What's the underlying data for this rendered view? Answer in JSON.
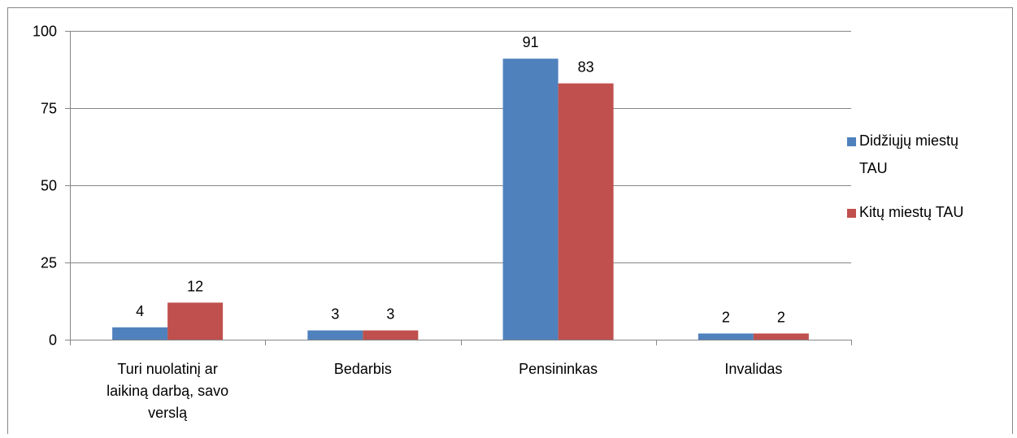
{
  "chart_data": {
    "type": "bar",
    "categories": [
      [
        "Turi nuolatinį ar",
        "laikiną darbą, savo",
        "verslą"
      ],
      [
        "Bedarbis"
      ],
      [
        "Pensininkas"
      ],
      [
        "Invalidas"
      ]
    ],
    "series": [
      {
        "name": [
          "Didžiųjų miestų",
          "TAU"
        ],
        "values": [
          4,
          3,
          91,
          2
        ],
        "color": "#4F81BD"
      },
      {
        "name": [
          "Kitų miestų TAU"
        ],
        "values": [
          12,
          3,
          83,
          2
        ],
        "color": "#C0504D"
      }
    ],
    "yticks": [
      "0",
      "25",
      "50",
      "75",
      "100"
    ],
    "ylim": [
      0,
      100
    ],
    "grid": true,
    "legend_position": "right",
    "gridline_color": "#868686",
    "axis_color": "#868686",
    "border_color": "#868686"
  }
}
